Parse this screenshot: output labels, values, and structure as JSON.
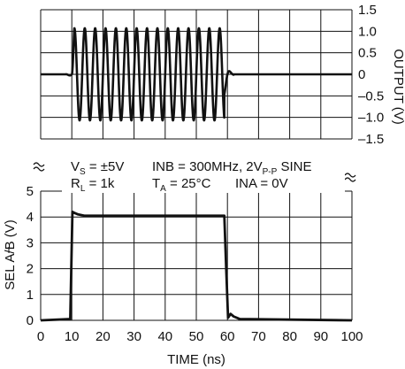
{
  "chart_data": [
    {
      "type": "line",
      "panel": "top",
      "ylabel": "OUTPUT (V)",
      "ylim": [
        -1.5,
        1.5
      ],
      "yticks": [
        "1.5",
        "1.0",
        "0.5",
        "0",
        "–0.5",
        "–1.0",
        "–1.5"
      ],
      "xlim": [
        0,
        100
      ],
      "grid": true,
      "burst": {
        "start_ns": 10,
        "end_ns": 59,
        "frequency_mhz": 300,
        "amplitude_v": 1.07,
        "baseline_v": 0
      }
    },
    {
      "type": "line",
      "panel": "bottom",
      "ylabel": "SEL A/B (V)",
      "ylabel_overline": "A",
      "xlabel": "TIME (ns)",
      "ylim": [
        0,
        5
      ],
      "yticks": [
        "5",
        "4",
        "3",
        "2",
        "1",
        "0"
      ],
      "xlim": [
        0,
        100
      ],
      "xticks": [
        "0",
        "10",
        "20",
        "30",
        "40",
        "50",
        "60",
        "70",
        "80",
        "90",
        "100"
      ],
      "grid": true,
      "series": [
        {
          "x": [
            0,
            9.5,
            10.2,
            11,
            12,
            14,
            59,
            59.6,
            60.2,
            61,
            62,
            64,
            100
          ],
          "y": [
            0,
            0.05,
            4.2,
            4.15,
            4.1,
            4.05,
            4.05,
            2.0,
            0.1,
            0.25,
            0.15,
            0.05,
            0
          ]
        }
      ]
    }
  ],
  "conditions": {
    "line1_a": "V",
    "line1_a_sub": "S",
    "line1_a_rest": " = ±5V",
    "line1_b": "INB = 300MHz, 2V",
    "line1_b_sub": "P-P",
    "line1_b_rest": " SINE",
    "line2_a": "R",
    "line2_a_sub": "L",
    "line2_a_rest": " = 1k",
    "line2_b": "T",
    "line2_b_sub": "A",
    "line2_b_rest": " = 25°C",
    "line2_c": "INA = 0V"
  },
  "colors": {
    "ink": "#111111",
    "background": "#ffffff"
  }
}
